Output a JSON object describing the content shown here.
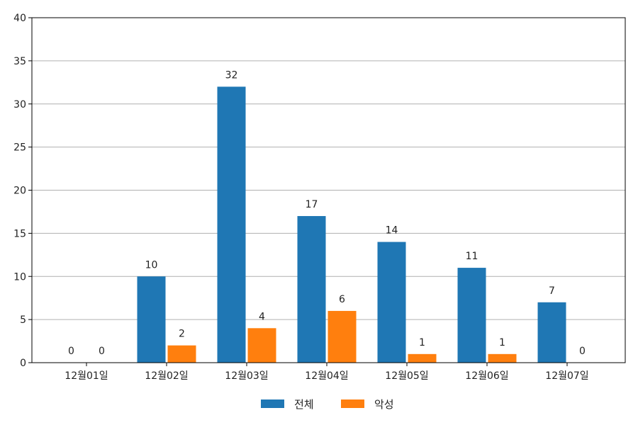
{
  "chart_data": {
    "type": "bar",
    "title": "",
    "xlabel": "",
    "ylabel": "",
    "categories": [
      "12월01일",
      "12월02일",
      "12월03일",
      "12월04일",
      "12월05일",
      "12월06일",
      "12월07일"
    ],
    "series": [
      {
        "name": "전체",
        "values": [
          0,
          10,
          32,
          17,
          14,
          11,
          7
        ],
        "color": "#1f77b4"
      },
      {
        "name": "악성",
        "values": [
          0,
          2,
          4,
          6,
          1,
          1,
          0
        ],
        "color": "#ff7f0e"
      }
    ],
    "ylim": [
      0,
      40
    ],
    "yticks": [
      0,
      5,
      10,
      15,
      20,
      25,
      30,
      35,
      40
    ],
    "grid": "horizontal",
    "legend_position": "bottom-center",
    "data_labels": true
  }
}
